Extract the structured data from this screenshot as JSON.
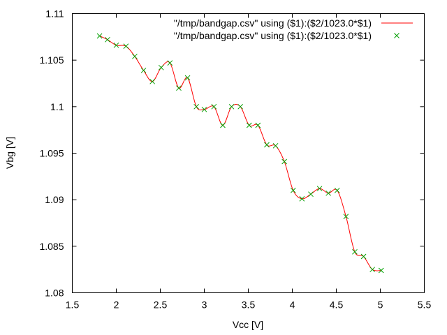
{
  "chart_data": {
    "type": "line",
    "xlabel": "Vcc [V]",
    "ylabel": "Vbg [V]",
    "xlim": [
      1.5,
      5.5
    ],
    "ylim": [
      1.08,
      1.11
    ],
    "x_ticks": [
      "1.5",
      "2",
      "2.5",
      "3",
      "3.5",
      "4",
      "4.5",
      "5",
      "5.5"
    ],
    "y_ticks": [
      "1.08",
      "1.085",
      "1.09",
      "1.095",
      "1.1",
      "1.105",
      "1.11"
    ],
    "grid": false,
    "legend_position": "top-right",
    "series": [
      {
        "name": "\"/tmp/bandgap.csv\" using ($1):($2/1023.0*$1)",
        "style": "smooth-line",
        "color": "#ff0000"
      },
      {
        "name": "\"/tmp/bandgap.csv\" using ($1):($2/1023.0*$1)",
        "style": "points",
        "marker": "x",
        "color": "#00a000"
      }
    ],
    "points": [
      [
        1.81,
        1.1076
      ],
      [
        1.9,
        1.1072
      ],
      [
        2.0,
        1.1066
      ],
      [
        2.11,
        1.1065
      ],
      [
        2.21,
        1.1054
      ],
      [
        2.31,
        1.1039
      ],
      [
        2.41,
        1.1027
      ],
      [
        2.51,
        1.1042
      ],
      [
        2.61,
        1.1047
      ],
      [
        2.71,
        1.102
      ],
      [
        2.81,
        1.1031
      ],
      [
        2.91,
        1.1
      ],
      [
        3.0,
        1.0997
      ],
      [
        3.11,
        1.1
      ],
      [
        3.21,
        1.098
      ],
      [
        3.31,
        1.1
      ],
      [
        3.41,
        1.1
      ],
      [
        3.51,
        1.098
      ],
      [
        3.61,
        1.098
      ],
      [
        3.71,
        1.0959
      ],
      [
        3.81,
        1.0958
      ],
      [
        3.91,
        1.0941
      ],
      [
        4.01,
        1.091
      ],
      [
        4.11,
        1.0901
      ],
      [
        4.21,
        1.0906
      ],
      [
        4.31,
        1.0912
      ],
      [
        4.41,
        1.0907
      ],
      [
        4.51,
        1.091
      ],
      [
        4.61,
        1.0882
      ],
      [
        4.71,
        1.0844
      ],
      [
        4.81,
        1.0839
      ],
      [
        4.91,
        1.0825
      ],
      [
        5.01,
        1.0824
      ]
    ]
  }
}
